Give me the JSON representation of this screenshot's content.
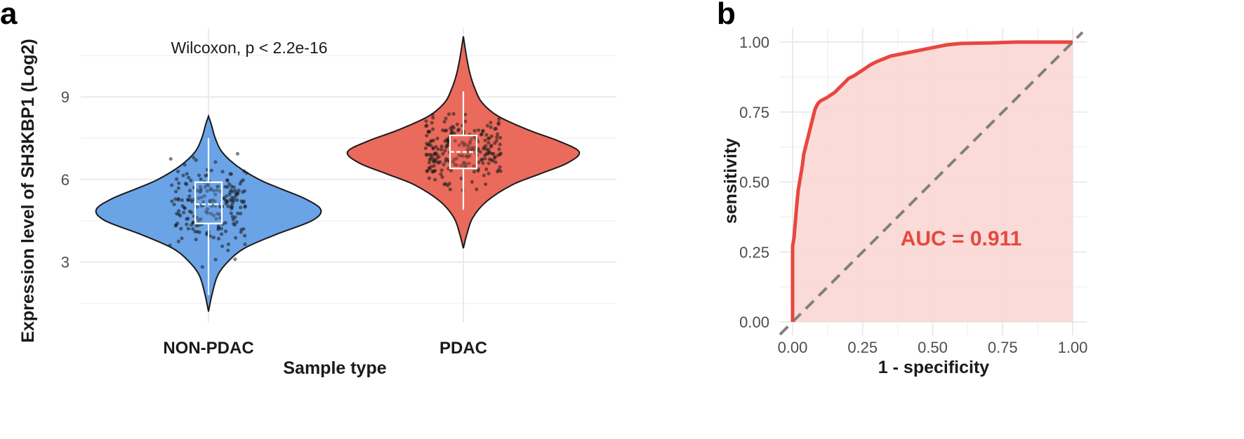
{
  "chart_data": [
    {
      "panel": "a",
      "type": "violin",
      "title": "",
      "annotation": "Wilcoxon, p < 2.2e-16",
      "xlabel": "Sample type",
      "ylabel": "Expression level of SH3KBP1 (Log2)",
      "categories": [
        "NON-PDAC",
        "PDAC"
      ],
      "ylim": [
        0.8,
        11.5
      ],
      "yticks": [
        3,
        6,
        9
      ],
      "grid": true,
      "series": [
        {
          "name": "NON-PDAC",
          "color": "#6aa3e6",
          "min": 1.2,
          "max": 8.3,
          "whisker_low": 1.8,
          "q1": 4.4,
          "median": 5.1,
          "q3": 5.9,
          "whisker_high": 7.5,
          "violin_profile": [
            [
              1.2,
              0.0
            ],
            [
              1.8,
              0.03
            ],
            [
              2.5,
              0.08
            ],
            [
              3.0,
              0.17
            ],
            [
              3.5,
              0.32
            ],
            [
              4.0,
              0.6
            ],
            [
              4.5,
              0.92
            ],
            [
              4.9,
              1.0
            ],
            [
              5.3,
              0.86
            ],
            [
              5.7,
              0.62
            ],
            [
              6.0,
              0.45
            ],
            [
              6.5,
              0.25
            ],
            [
              7.0,
              0.12
            ],
            [
              7.5,
              0.06
            ],
            [
              8.0,
              0.025
            ],
            [
              8.3,
              0.0
            ]
          ],
          "n_points": 210
        },
        {
          "name": "PDAC",
          "color": "#ea6a5c",
          "min": 3.5,
          "max": 11.2,
          "whisker_low": 4.9,
          "q1": 6.4,
          "median": 7.0,
          "q3": 7.6,
          "whisker_high": 9.2,
          "violin_profile": [
            [
              3.5,
              0.0
            ],
            [
              4.0,
              0.03
            ],
            [
              4.6,
              0.08
            ],
            [
              5.2,
              0.2
            ],
            [
              5.8,
              0.42
            ],
            [
              6.2,
              0.66
            ],
            [
              6.6,
              0.9
            ],
            [
              7.0,
              1.0
            ],
            [
              7.4,
              0.82
            ],
            [
              7.8,
              0.56
            ],
            [
              8.3,
              0.3
            ],
            [
              8.8,
              0.16
            ],
            [
              9.3,
              0.1
            ],
            [
              9.8,
              0.06
            ],
            [
              10.4,
              0.03
            ],
            [
              11.2,
              0.0
            ]
          ],
          "n_points": 230
        }
      ]
    },
    {
      "panel": "b",
      "type": "line",
      "title": "",
      "xlabel": "1 - specificity",
      "ylabel": "sensitivity",
      "xlim": [
        0,
        1
      ],
      "ylim": [
        0,
        1
      ],
      "xticks": [
        "0.00",
        "0.25",
        "0.50",
        "0.75",
        "1.00"
      ],
      "yticks": [
        "0.00",
        "0.25",
        "0.50",
        "0.75",
        "1.00"
      ],
      "grid": true,
      "annotation": "AUC = 0.911",
      "series": [
        {
          "name": "ROC",
          "color": "#e8473f",
          "fill": "#f9d7d4",
          "x": [
            0,
            0,
            0.005,
            0.01,
            0.015,
            0.02,
            0.025,
            0.03,
            0.035,
            0.04,
            0.05,
            0.06,
            0.07,
            0.08,
            0.09,
            0.1,
            0.12,
            0.15,
            0.18,
            0.2,
            0.22,
            0.25,
            0.28,
            0.3,
            0.35,
            0.4,
            0.45,
            0.5,
            0.55,
            0.6,
            0.7,
            0.8,
            0.9,
            1.0
          ],
          "y": [
            0,
            0.27,
            0.3,
            0.36,
            0.42,
            0.47,
            0.5,
            0.53,
            0.56,
            0.6,
            0.64,
            0.68,
            0.72,
            0.76,
            0.78,
            0.79,
            0.8,
            0.82,
            0.85,
            0.87,
            0.88,
            0.9,
            0.92,
            0.93,
            0.95,
            0.96,
            0.97,
            0.98,
            0.99,
            0.995,
            0.997,
            1.0,
            1.0,
            1.0
          ]
        },
        {
          "name": "reference",
          "color": "#808080",
          "style": "dashed",
          "x": [
            0,
            1
          ],
          "y": [
            0,
            1
          ]
        }
      ]
    }
  ]
}
